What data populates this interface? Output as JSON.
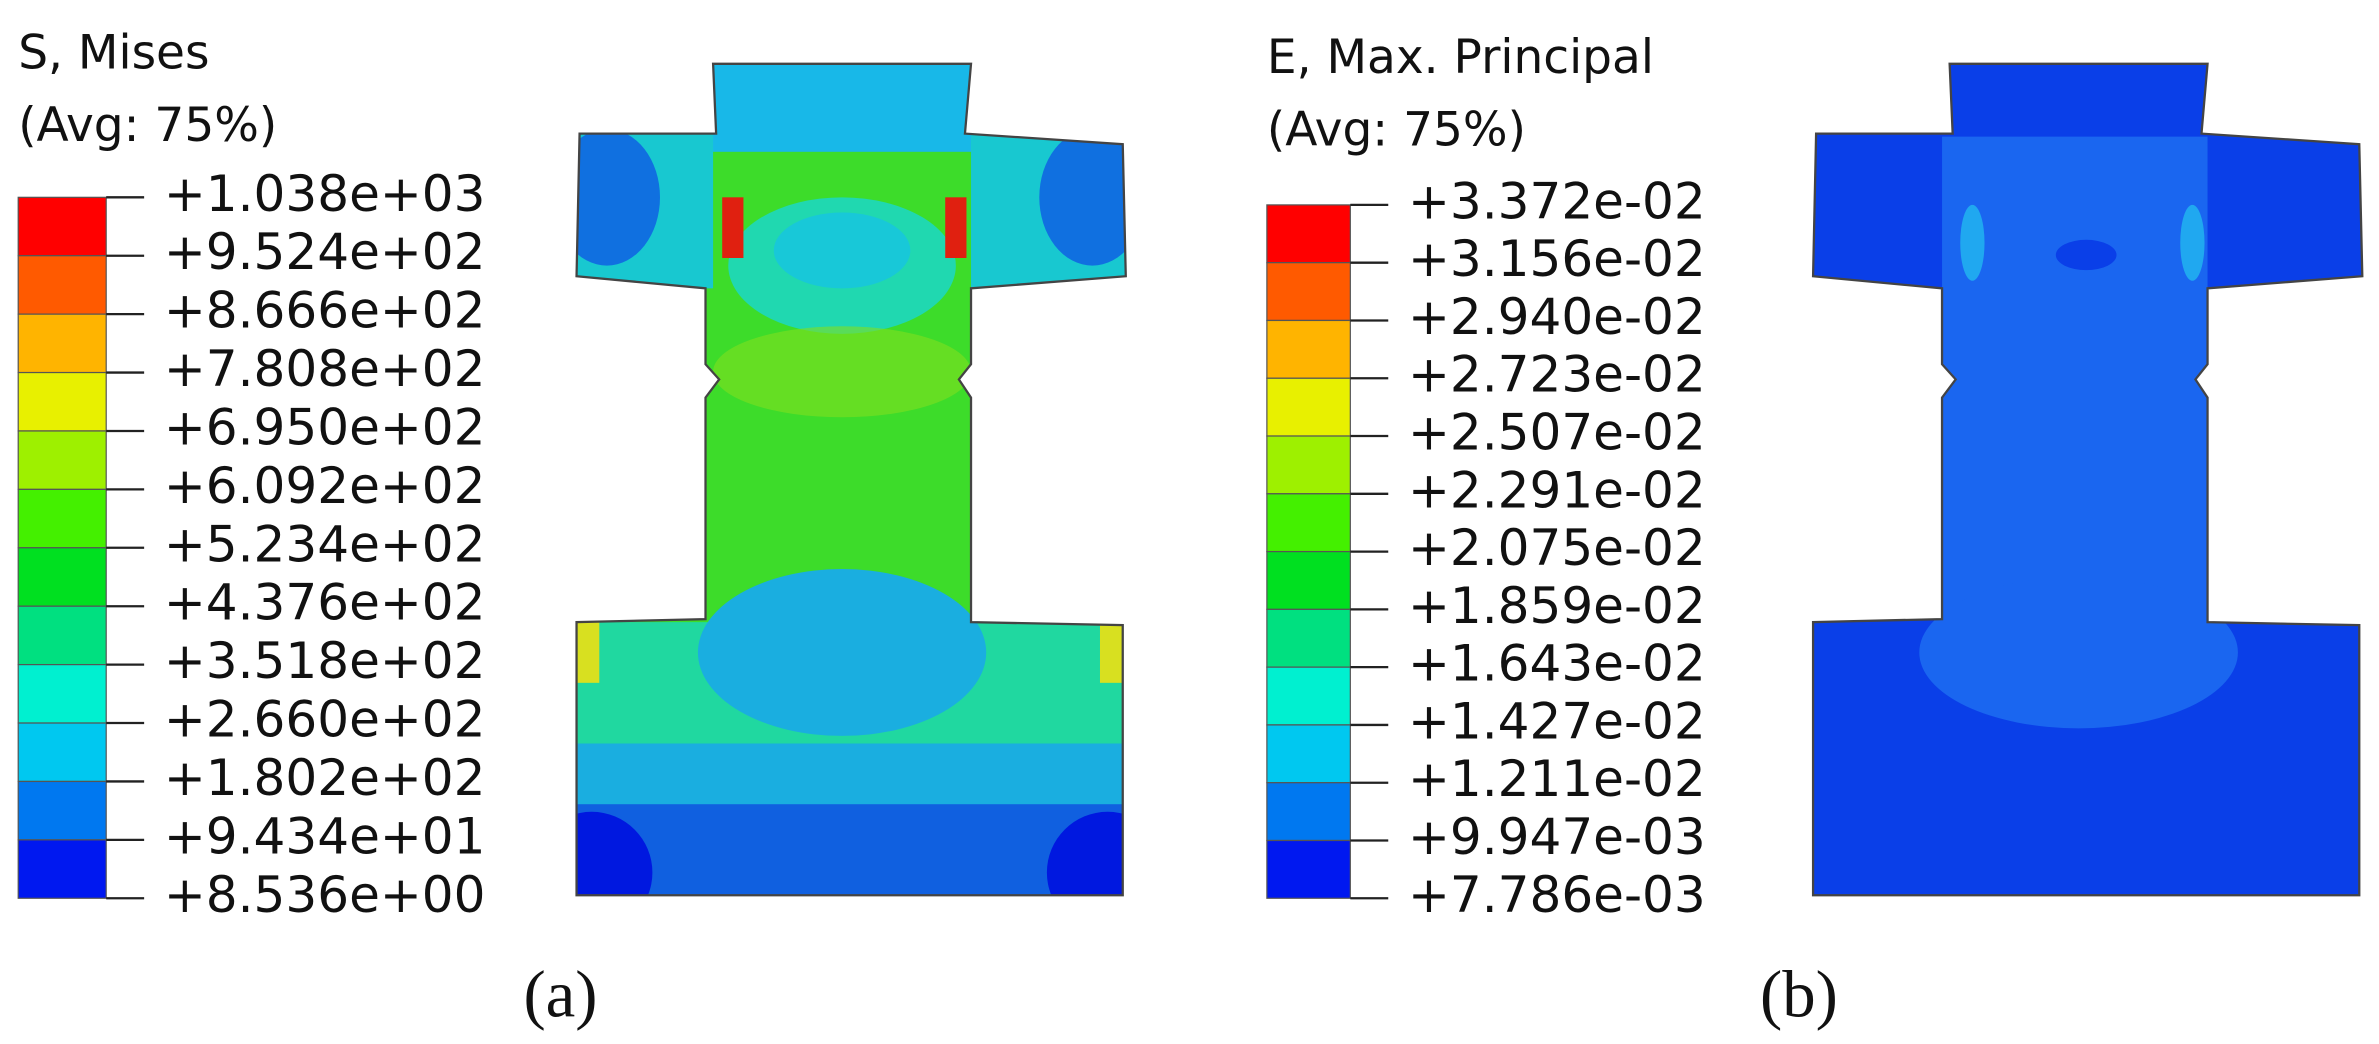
{
  "panels": [
    {
      "title": "S, Mises",
      "subtitle": "(Avg: 75%)",
      "legend": [
        "+1.038e+03",
        "+9.524e+02",
        "+8.666e+02",
        "+7.808e+02",
        "+6.950e+02",
        "+6.092e+02",
        "+5.234e+02",
        "+4.376e+02",
        "+3.518e+02",
        "+2.660e+02",
        "+1.802e+02",
        "+9.434e+01",
        "+8.536e+00"
      ],
      "caption": "(a)"
    },
    {
      "title": "E, Max. Principal",
      "subtitle": "(Avg: 75%)",
      "legend": [
        "+3.372e-02",
        "+3.156e-02",
        "+2.940e-02",
        "+2.723e-02",
        "+2.507e-02",
        "+2.291e-02",
        "+2.075e-02",
        "+1.859e-02",
        "+1.643e-02",
        "+1.427e-02",
        "+1.211e-02",
        "+9.947e-03",
        "+7.786e-03"
      ],
      "caption": "(b)"
    }
  ]
}
